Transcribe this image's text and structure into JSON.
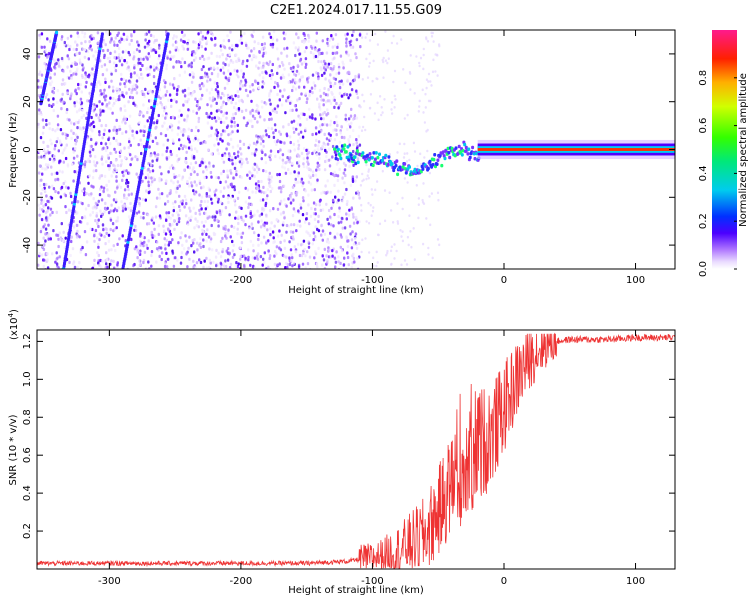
{
  "figure": {
    "title": "C2E1.2024.017.11.55.G09"
  },
  "chart_data": [
    {
      "type": "heatmap",
      "title": "C2E1.2024.017.11.55.G09",
      "xlabel": "Height of straight line (km)",
      "ylabel": "Frequency (Hz)",
      "xlim": [
        -355,
        130
      ],
      "ylim": [
        -50,
        50
      ],
      "xticks": [
        -300,
        -200,
        -100,
        0,
        100
      ],
      "yticks": [
        -40,
        -20,
        0,
        20,
        40
      ],
      "colorbar": {
        "label": "Normalized spectral amplitude",
        "range": [
          0.0,
          1.0
        ],
        "ticks": [
          0.0,
          0.2,
          0.4,
          0.6,
          0.8
        ],
        "tick_labels": [
          "0.0",
          "0.2",
          "0.4",
          "0.6",
          "0.8"
        ]
      },
      "features": {
        "noise_region_km": [
          -355,
          -110
        ],
        "transition_region_km": [
          -110,
          -20
        ],
        "tone_frequency_hz": 0,
        "tone_band_start_km": -20
      }
    },
    {
      "type": "line",
      "xlabel": "Height of straight line (km)",
      "ylabel": "SNR (10 * v/v)",
      "y_multiplier_label": "(x10",
      "y_multiplier_exp": "4",
      "xlim": [
        -355,
        130
      ],
      "ylim": [
        0,
        1.26
      ],
      "xticks": [
        -300,
        -200,
        -100,
        0,
        100
      ],
      "yticks": [
        0.2,
        0.4,
        0.6,
        0.8,
        1.0,
        1.2
      ],
      "series": [
        {
          "name": "SNR",
          "color": "#ee3333",
          "x": [
            -355,
            -300,
            -250,
            -200,
            -150,
            -120,
            -100,
            -80,
            -60,
            -50,
            -40,
            -30,
            -20,
            -10,
            0,
            10,
            20,
            30,
            40,
            50,
            60,
            80,
            100,
            130
          ],
          "y": [
            0.03,
            0.03,
            0.03,
            0.03,
            0.03,
            0.04,
            0.06,
            0.1,
            0.18,
            0.3,
            0.45,
            0.55,
            0.65,
            0.7,
            0.85,
            1.0,
            1.12,
            1.18,
            1.2,
            1.21,
            1.21,
            1.21,
            1.22,
            1.22
          ]
        }
      ]
    }
  ]
}
